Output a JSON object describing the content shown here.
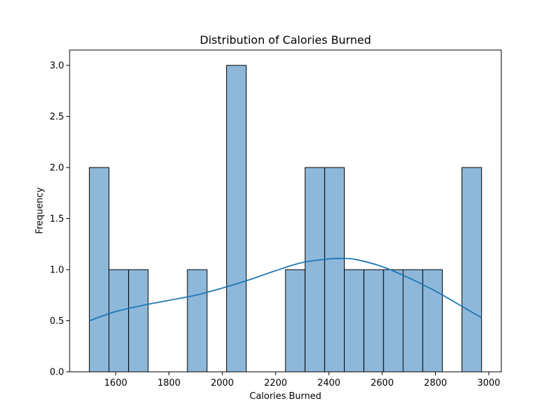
{
  "chart_data": {
    "type": "bar",
    "title": "Distribution of Calories Burned",
    "xlabel": "Calories Burned",
    "ylabel": "Frequency",
    "xlim": [
      1427,
      3047
    ],
    "ylim": [
      0,
      3.15
    ],
    "grid": false,
    "bin_edges": [
      1501,
      1574.6,
      1648.2,
      1721.8,
      1795.4,
      1869,
      1942.6,
      2016.2,
      2089.8,
      2163.4,
      2237,
      2310.6,
      2384.2,
      2457.8,
      2531.4,
      2605,
      2678.6,
      2752.2,
      2825.8,
      2899.4,
      2973
    ],
    "counts": [
      2,
      1,
      1,
      0,
      0,
      1,
      0,
      3,
      0,
      0,
      1,
      2,
      2,
      1,
      1,
      1,
      1,
      1,
      0,
      2
    ],
    "x_ticks": [
      1600,
      1800,
      2000,
      2200,
      2400,
      2600,
      2800,
      3000
    ],
    "x_tick_labels": [
      "1600",
      "1800",
      "2000",
      "2200",
      "2400",
      "2600",
      "2800",
      "3000"
    ],
    "y_ticks": [
      0,
      0.5,
      1,
      1.5,
      2,
      2.5,
      3
    ],
    "y_tick_labels": [
      "0.0",
      "0.5",
      "1.0",
      "1.5",
      "2.0",
      "2.5",
      "3.0"
    ],
    "kde": {
      "x": [
        1501,
        1600,
        1700,
        1800,
        1900,
        2000,
        2100,
        2200,
        2300,
        2400,
        2450,
        2500,
        2600,
        2700,
        2800,
        2900,
        2973
      ],
      "y": [
        0.5,
        0.59,
        0.65,
        0.7,
        0.75,
        0.82,
        0.9,
        0.99,
        1.07,
        1.105,
        1.11,
        1.1,
        1.03,
        0.92,
        0.79,
        0.64,
        0.53
      ]
    },
    "colors": {
      "bar_fill": "#8db8da",
      "bar_edge": "#000000",
      "kde_line": "#1f77b4"
    }
  }
}
